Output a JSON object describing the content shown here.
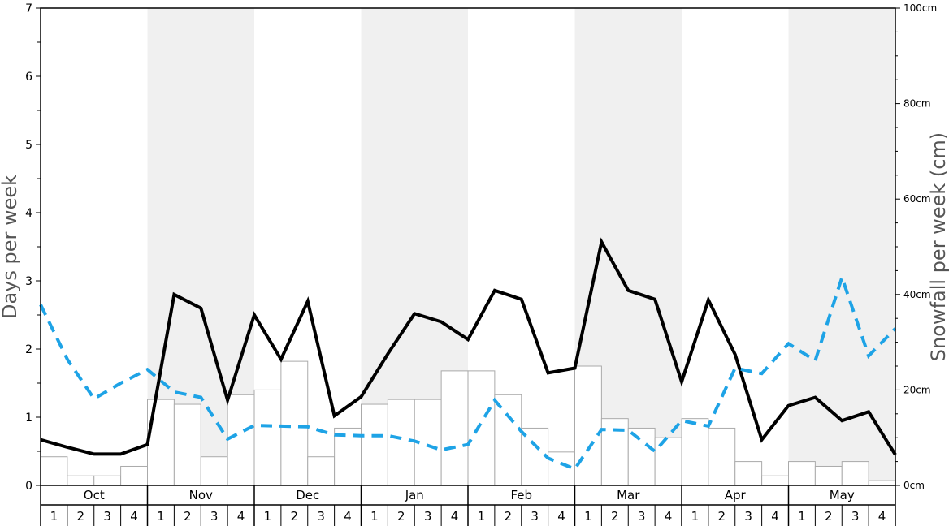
{
  "chart_data": {
    "type": "bar",
    "title": "",
    "ylabel_left": "Days per week",
    "ylabel_right": "Snowfall per week (cm)",
    "ylim_left": [
      0,
      7
    ],
    "ylim_right": [
      0,
      100
    ],
    "left_ticks": [
      "0",
      "1",
      "2",
      "3",
      "4",
      "5",
      "6",
      "7"
    ],
    "right_ticks": [
      "0cm",
      "20cm",
      "40cm",
      "60cm",
      "80cm",
      "100cm"
    ],
    "months": [
      "Oct",
      "Nov",
      "Dec",
      "Jan",
      "Feb",
      "Mar",
      "Apr",
      "May"
    ],
    "weeks": [
      "1",
      "2",
      "3",
      "4"
    ],
    "shaded_months": [
      "Nov",
      "Jan",
      "Mar",
      "May"
    ],
    "grid": false,
    "colors": {
      "shade": "#f0f0f0",
      "bar_fill": "#ffffff",
      "bar_stroke": "#aaaaaa",
      "line_solid": "#000000",
      "line_dashed": "#1ea3e6"
    },
    "series": [
      {
        "kind": "bar",
        "axis": "right",
        "values": [
          6,
          2,
          2,
          4,
          18,
          17,
          6,
          19,
          20,
          26,
          6,
          12,
          17,
          18,
          18,
          24,
          24,
          19,
          12,
          7,
          25,
          14,
          12,
          10,
          14,
          12,
          5,
          2,
          5,
          4,
          5,
          1
        ]
      },
      {
        "kind": "line",
        "style": "solid",
        "axis": "left",
        "values": [
          0.67,
          0.56,
          0.46,
          0.46,
          0.6,
          2.8,
          2.6,
          1.25,
          2.5,
          1.85,
          2.7,
          1.02,
          1.3,
          1.93,
          2.52,
          2.4,
          2.14,
          2.86,
          2.73,
          1.65,
          1.72,
          3.57,
          2.86,
          2.73,
          1.52,
          2.72,
          1.92,
          0.67,
          1.17,
          1.29,
          0.95,
          1.08,
          0.45
        ]
      },
      {
        "kind": "line",
        "style": "dashed",
        "axis": "left",
        "values": [
          2.65,
          1.85,
          1.27,
          1.5,
          1.7,
          1.37,
          1.29,
          0.68,
          0.88,
          0.87,
          0.86,
          0.74,
          0.73,
          0.73,
          0.65,
          0.52,
          0.6,
          1.25,
          0.79,
          0.4,
          0.24,
          0.82,
          0.81,
          0.5,
          0.95,
          0.87,
          1.72,
          1.64,
          2.08,
          1.83,
          3.05,
          1.9,
          2.3
        ]
      }
    ]
  }
}
